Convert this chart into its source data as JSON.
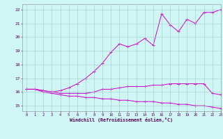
{
  "title": "",
  "xlabel": "Windchill (Refroidissement éolien,°C)",
  "background_color": "#d0f5f5",
  "grid_color": "#a0cccc",
  "line_color": "#cc00cc",
  "xlim": [
    -0.5,
    23
  ],
  "ylim": [
    14.6,
    22.4
  ],
  "xticks": [
    0,
    1,
    2,
    3,
    4,
    5,
    6,
    7,
    8,
    9,
    10,
    11,
    12,
    13,
    14,
    15,
    16,
    17,
    18,
    19,
    20,
    21,
    22,
    23
  ],
  "yticks": [
    15,
    16,
    17,
    18,
    19,
    20,
    21,
    22
  ],
  "series": {
    "line1_x": [
      0,
      1,
      2,
      3,
      4,
      5,
      6,
      7,
      8,
      9,
      10,
      11,
      12,
      13,
      14,
      15,
      16,
      17,
      18,
      19,
      20,
      21,
      22,
      23
    ],
    "line1_y": [
      16.2,
      16.2,
      16.1,
      16.0,
      16.1,
      16.3,
      16.6,
      17.0,
      17.5,
      18.1,
      18.9,
      19.5,
      19.3,
      19.5,
      19.9,
      19.4,
      21.7,
      20.9,
      20.4,
      21.3,
      21.0,
      21.8,
      21.8,
      22.0
    ],
    "line2_x": [
      0,
      1,
      2,
      3,
      4,
      5,
      6,
      7,
      8,
      9,
      10,
      11,
      12,
      13,
      14,
      15,
      16,
      17,
      18,
      19,
      20,
      21,
      22,
      23
    ],
    "line2_y": [
      16.2,
      16.2,
      16.1,
      16.0,
      15.9,
      15.9,
      15.9,
      15.9,
      16.0,
      16.2,
      16.2,
      16.3,
      16.4,
      16.4,
      16.4,
      16.5,
      16.5,
      16.6,
      16.6,
      16.6,
      16.6,
      16.6,
      15.9,
      15.8
    ],
    "line3_x": [
      0,
      1,
      2,
      3,
      4,
      5,
      6,
      7,
      8,
      9,
      10,
      11,
      12,
      13,
      14,
      15,
      16,
      17,
      18,
      19,
      20,
      21,
      22,
      23
    ],
    "line3_y": [
      16.2,
      16.2,
      16.0,
      15.9,
      15.8,
      15.7,
      15.7,
      15.6,
      15.6,
      15.5,
      15.5,
      15.4,
      15.4,
      15.3,
      15.3,
      15.3,
      15.2,
      15.2,
      15.1,
      15.1,
      15.0,
      15.0,
      14.9,
      14.8
    ]
  }
}
